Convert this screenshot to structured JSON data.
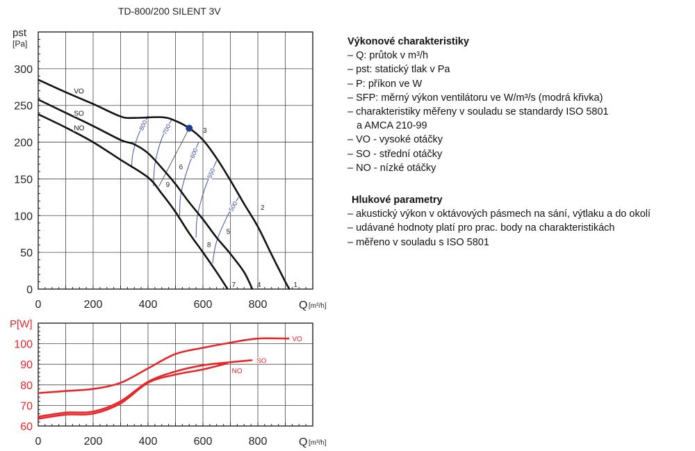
{
  "title": "TD-800/200 SILENT 3V",
  "legend": {
    "heading": "Výkonové charakteristiky",
    "lines": [
      "– Q: průtok v m³/h",
      "– pst: statický tlak v Pa",
      "– P: příkon ve W",
      "– SFP: měrný výkon ventilátoru ve W/m³/s (modrá křivka)",
      "– charakteristiky měřeny v souladu se standardy ISO 5801"
    ],
    "line_cont": "a AMCA 210-99",
    "speed_lines": [
      "– VO - vysoké otáčky",
      "– SO - střední otáčky",
      "– NO - nízké otáčky"
    ],
    "noise_heading": "Hlukové parametry",
    "noise_lines": [
      "– akustický výkon v oktávových pásmech na sání, výtlaku a do okolí",
      "– udávané hodnoty platí pro prac. body na charakteristikách",
      "– měřeno v souladu s ISO 5801"
    ]
  },
  "chart_data": [
    {
      "type": "line",
      "ylabel": "pst",
      "yunit": "[Pa]",
      "xlabel": "Q",
      "xunit": "[m³/h]",
      "xlim": [
        0,
        1000
      ],
      "ylim": [
        0,
        350
      ],
      "grid": true,
      "xticks": [
        0,
        200,
        400,
        600,
        800
      ],
      "yticks": [
        0,
        50,
        100,
        150,
        200,
        250,
        300
      ],
      "color": "#111111",
      "series": [
        {
          "name": "VO",
          "points": [
            [
              0,
              285
            ],
            [
              100,
              268
            ],
            [
              200,
              252
            ],
            [
              300,
              235
            ],
            [
              350,
              233
            ],
            [
              450,
              234
            ],
            [
              500,
              229
            ],
            [
              550,
              219
            ],
            [
              600,
              203
            ],
            [
              650,
              178
            ],
            [
              700,
              148
            ],
            [
              750,
              116
            ],
            [
              800,
              85
            ],
            [
              850,
              47
            ],
            [
              900,
              10
            ],
            [
              915,
              0
            ]
          ],
          "label_at": [
            130,
            270
          ]
        },
        {
          "name": "SO",
          "points": [
            [
              0,
              258
            ],
            [
              100,
              240
            ],
            [
              200,
              222
            ],
            [
              300,
              203
            ],
            [
              350,
              197
            ],
            [
              400,
              185
            ],
            [
              450,
              165
            ],
            [
              500,
              143
            ],
            [
              550,
              118
            ],
            [
              600,
              95
            ],
            [
              650,
              70
            ],
            [
              700,
              48
            ],
            [
              750,
              23
            ],
            [
              780,
              0
            ]
          ],
          "label_at": [
            130,
            240
          ]
        },
        {
          "name": "NO",
          "points": [
            [
              0,
              238
            ],
            [
              100,
              220
            ],
            [
              200,
              200
            ],
            [
              300,
              176
            ],
            [
              400,
              152
            ],
            [
              450,
              130
            ],
            [
              500,
              105
            ],
            [
              550,
              76
            ],
            [
              600,
              50
            ],
            [
              650,
              23
            ],
            [
              690,
              0
            ]
          ],
          "label_at": [
            130,
            220
          ]
        }
      ],
      "sfp_curves": {
        "color": "#3a4fa8",
        "curves": [
          {
            "label": "800",
            "points": [
              [
                400,
                236
              ],
              [
                365,
                210
              ],
              [
                345,
                185
              ],
              [
                340,
                165
              ]
            ]
          },
          {
            "label": "700",
            "points": [
              [
                485,
                230
              ],
              [
                450,
                205
              ],
              [
                425,
                170
              ],
              [
                420,
                140
              ]
            ]
          },
          {
            "label": "600",
            "points": [
              [
                585,
                200
              ],
              [
                550,
                170
              ],
              [
                520,
                130
              ],
              [
                515,
                100
              ]
            ]
          },
          {
            "label": "550",
            "points": [
              [
                650,
                175
              ],
              [
                610,
                140
              ],
              [
                580,
                100
              ],
              [
                575,
                70
              ]
            ]
          },
          {
            "label": "500",
            "points": [
              [
                730,
                125
              ],
              [
                690,
                100
              ],
              [
                650,
                65
              ],
              [
                635,
                35
              ]
            ]
          }
        ]
      },
      "design_point": {
        "q": 550,
        "p": 219,
        "color": "#1f3a8f"
      },
      "operating_points": [
        {
          "label": "1",
          "q": 930,
          "p": 3
        },
        {
          "label": "2",
          "q": 810,
          "p": 108
        },
        {
          "label": "3",
          "q": 600,
          "p": 213
        },
        {
          "label": "4",
          "q": 797,
          "p": 3
        },
        {
          "label": "5",
          "q": 685,
          "p": 75
        },
        {
          "label": "6",
          "q": 513,
          "p": 163
        },
        {
          "label": "7",
          "q": 705,
          "p": 3
        },
        {
          "label": "8",
          "q": 615,
          "p": 57
        },
        {
          "label": "9",
          "q": 465,
          "p": 139
        }
      ],
      "design_line": [
        [
          550,
          219
        ],
        [
          440,
          140
        ]
      ]
    },
    {
      "type": "line",
      "ylabel": "P[W]",
      "xlabel": "Q",
      "xunit": "[m³/h]",
      "xlim": [
        0,
        1000
      ],
      "ylim": [
        60,
        110
      ],
      "grid": true,
      "xticks": [
        0,
        200,
        400,
        600,
        800
      ],
      "yticks": [
        60,
        70,
        80,
        90,
        100
      ],
      "color": "#e8262a",
      "series": [
        {
          "name": "VO",
          "points": [
            [
              0,
              76
            ],
            [
              100,
              77
            ],
            [
              200,
              78
            ],
            [
              300,
              81
            ],
            [
              400,
              88
            ],
            [
              500,
              95
            ],
            [
              600,
              98
            ],
            [
              700,
              100.5
            ],
            [
              800,
              102.5
            ],
            [
              915,
              102.5
            ]
          ],
          "label_at": [
            925,
            102.5
          ]
        },
        {
          "name": "SO",
          "points": [
            [
              0,
              64.5
            ],
            [
              100,
              66.5
            ],
            [
              200,
              67
            ],
            [
              300,
              72
            ],
            [
              400,
              81.5
            ],
            [
              500,
              86.5
            ],
            [
              600,
              89.5
            ],
            [
              700,
              91
            ],
            [
              780,
              92
            ]
          ],
          "label_at": [
            795,
            92
          ]
        },
        {
          "name": "NO",
          "points": [
            [
              0,
              63.5
            ],
            [
              100,
              65.5
            ],
            [
              200,
              66
            ],
            [
              300,
              71
            ],
            [
              400,
              81
            ],
            [
              500,
              85
            ],
            [
              600,
              87.5
            ],
            [
              690,
              90.5
            ]
          ],
          "label_at": [
            705,
            87
          ]
        }
      ]
    }
  ]
}
